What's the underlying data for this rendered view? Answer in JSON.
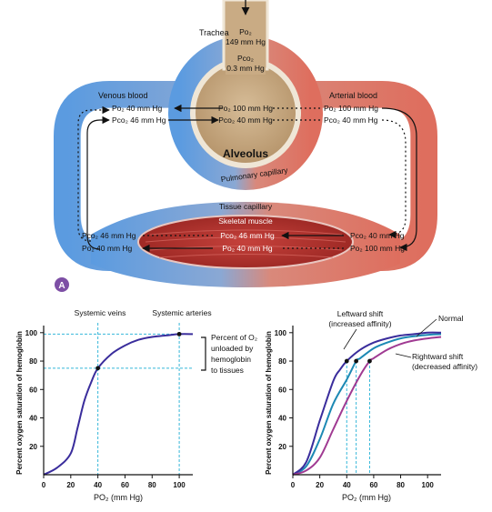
{
  "colors": {
    "venous": "#5b9be0",
    "venous_dark": "#3b7bd0",
    "arterial": "#de6e5e",
    "arterial_dark": "#c4493e",
    "alveolus": "#c9ab84",
    "muscle": "#b8332e",
    "normal": "#1d89b4",
    "left": "#3a2d9c",
    "right": "#a03a92",
    "guide": "#35b7d9",
    "panel_marker": "#7d4fa5"
  },
  "diagram": {
    "trachea": "Trachea",
    "trachea_po2": "Po₂",
    "trachea_po2_val": "149 mm Hg",
    "trachea_pco2": "Pco₂",
    "trachea_pco2_val": "0.3 mm Hg",
    "venous_blood": "Venous blood",
    "arterial_blood": "Arterial blood",
    "venous_po2": "Po₂ 40 mm Hg",
    "venous_pco2": "Pco₂ 46 mm Hg",
    "alv_po2": "Po₂ 100 mm Hg",
    "alv_pco2": "Pco₂ 40 mm Hg",
    "art_po2": "Po₂ 100 mm Hg",
    "art_pco2": "Pco₂ 40 mm Hg",
    "alveolus": "Alveolus",
    "pulmonary_capillary": "Pulmonary capillary",
    "tissue_capillary": "Tissue capillary",
    "skeletal_muscle": "Skeletal muscle",
    "tis_left_pco2": "Pco₂ 46 mm Hg",
    "tis_left_po2": "Po₂ 40 mm Hg",
    "mus_pco2": "Pco₂ 46 mm Hg",
    "mus_po2": "Po₂ 40 mm Hg",
    "tis_right_pco2": "Pco₂ 40 mm Hg",
    "tis_right_po2": "Po₂ 100 mm Hg",
    "panel_label": "A"
  },
  "chart_data": [
    {
      "type": "line",
      "xlabel": "PO₂ (mm Hg)",
      "ylabel": "Percent oxygen saturation of hemoglobin",
      "xlim": [
        0,
        110
      ],
      "ylim": [
        0,
        105
      ],
      "xticks": [
        0,
        20,
        40,
        60,
        80,
        100
      ],
      "yticks": [
        20,
        40,
        60,
        80,
        100
      ],
      "series": [
        {
          "x": [
            0,
            10,
            20,
            25,
            30,
            35,
            40,
            50,
            60,
            70,
            80,
            90,
            100,
            110
          ],
          "y": [
            0,
            5,
            15,
            33,
            52,
            65,
            75,
            85,
            91,
            95,
            97,
            98,
            99,
            99
          ]
        }
      ],
      "markers": [
        {
          "x": 40,
          "y": 75
        },
        {
          "x": 100,
          "y": 99
        }
      ],
      "annotations": {
        "systemic_veins": "Systemic veins",
        "systemic_arteries": "Systemic arteries",
        "percent_unloaded_1": "Percent of O₂",
        "percent_unloaded_2": "unloaded by",
        "percent_unloaded_3": "hemoglobin",
        "percent_unloaded_4": "to tissues"
      }
    },
    {
      "type": "line",
      "xlabel": "PO₂ (mm Hg)",
      "ylabel": "Percent oxygen saturation of hemoglobin",
      "xlim": [
        0,
        110
      ],
      "ylim": [
        0,
        105
      ],
      "xticks": [
        0,
        20,
        40,
        60,
        80,
        100
      ],
      "yticks": [
        20,
        40,
        60,
        80,
        100
      ],
      "series": [
        {
          "name": "Normal",
          "x": [
            0,
            10,
            20,
            30,
            40,
            47,
            50,
            60,
            70,
            80,
            90,
            100,
            110
          ],
          "y": [
            0,
            6,
            25,
            50,
            67,
            80,
            82,
            89,
            93,
            96,
            97.5,
            98.5,
            99
          ]
        },
        {
          "name": "Leftward shift",
          "x": [
            0,
            10,
            20,
            30,
            35,
            40,
            50,
            60,
            70,
            80,
            90,
            100,
            110
          ],
          "y": [
            0,
            9,
            38,
            66,
            74,
            80,
            88,
            93,
            96,
            98,
            99,
            100,
            100
          ]
        },
        {
          "name": "Rightward shift",
          "x": [
            0,
            10,
            20,
            30,
            40,
            50,
            57,
            60,
            70,
            80,
            90,
            100,
            110
          ],
          "y": [
            0,
            3,
            12,
            32,
            52,
            70,
            80,
            82,
            88,
            92,
            94.5,
            96,
            97
          ]
        }
      ],
      "markers": [
        {
          "x": 40,
          "y": 80
        },
        {
          "x": 47,
          "y": 80
        },
        {
          "x": 57,
          "y": 80
        }
      ],
      "annotations": {
        "left_1": "Leftward shift",
        "left_2": "(increased affinity)",
        "normal": "Normal",
        "right_1": "Rightward shift",
        "right_2": "(decreased affinity)"
      }
    }
  ]
}
